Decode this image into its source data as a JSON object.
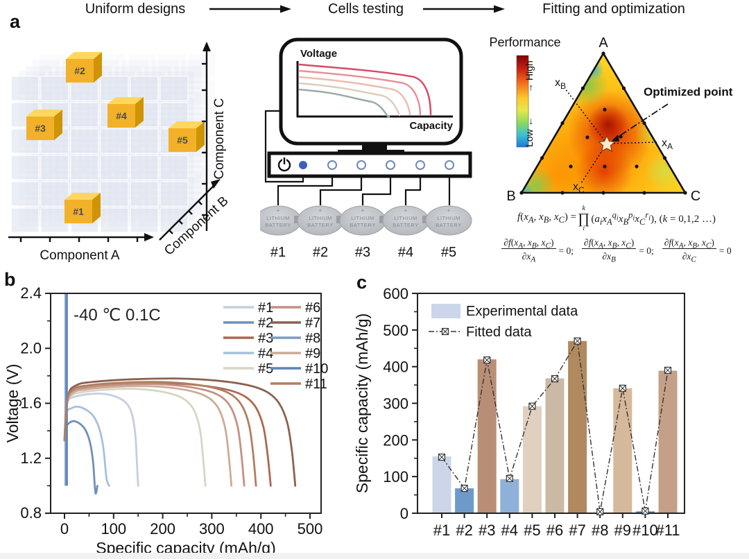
{
  "panel_labels": {
    "a": "a",
    "b": "b",
    "c": "c"
  },
  "header": {
    "step1": "Uniform designs",
    "step2": "Cells testing",
    "step3": "Fitting and optimization"
  },
  "panel_a": {
    "design": {
      "cube_labels": [
        "#1",
        "#2",
        "#3",
        "#4",
        "#5"
      ],
      "axis_a": "Component A",
      "axis_b": "Component B",
      "axis_c": "Component C"
    },
    "testing": {
      "monitor_ylabel": "Voltage",
      "monitor_xlabel": "Capacity",
      "monitor_curve_colors": [
        "#d84a63",
        "#e8909b",
        "#eebbac",
        "#dcccba",
        "#9aaaa4"
      ],
      "battery_plus": "+",
      "battery_line1": "LITHIUM",
      "battery_line2": "BATTERY",
      "cell_labels": [
        "#1",
        "#2",
        "#3",
        "#4",
        "#5"
      ]
    },
    "ternary": {
      "colorbar_title": "Performance",
      "high_label": "→ High",
      "low_label": "Low ←",
      "vertex_a": "A",
      "vertex_b": "B",
      "vertex_c": "C",
      "xa_base": "x",
      "xa_sub": "A",
      "xb_base": "x",
      "xb_sub": "B",
      "xc_base": "x",
      "xc_sub": "C",
      "optimized_label": "Optimized point",
      "colorbar_colors": [
        "#7a0403",
        "#c81d11",
        "#f46d1b",
        "#fdc62c",
        "#e6e84a",
        "#8ad860",
        "#38c1d8",
        "#1f78d1"
      ]
    },
    "equations": {
      "eq1_lhs": "<i>f</i>(<i>x<sub>A</sub></i>, <i>x<sub>B</sub></i>, <i>x<sub>C</sub></i>) =",
      "prod_top": "k",
      "prod_sym": "∏",
      "prod_bot": "i",
      "eq1_rhs": "(<i>a<sub>i</sub></i><i>x<sub>A</sub></i><sup><i>q<sub>i</sub></i></sup><i>x<sub>B</sub></i><sup><i>p<sub>i</sub></i></sup><i>x<sub>C</sub></i><sup><i>r<sub>i</sub></i></sup>), (<i>k</i> = 0,1,2 …)",
      "fractions": [
        {
          "num": "∂<i>f</i>(<i>x<sub>A</sub></i>, <i>x<sub>B</sub></i>, <i>x<sub>C</sub></i>)",
          "den": "∂<i>x<sub>A</sub></i>",
          "rhs": "= 0;"
        },
        {
          "num": "∂<i>f</i>(<i>x<sub>A</sub></i>, <i>x<sub>B</sub></i>, <i>x<sub>C</sub></i>)",
          "den": "∂<i>x<sub>B</sub></i>",
          "rhs": "= 0;"
        },
        {
          "num": "∂<i>f</i>(<i>x<sub>A</sub></i>, <i>x<sub>B</sub></i>, <i>x<sub>C</sub></i>)",
          "den": "∂<i>x<sub>C</sub></i>",
          "rhs": "= 0"
        }
      ]
    }
  },
  "chart_data": [
    {
      "type": "line",
      "panel": "b",
      "annotation": "-40 ℃ 0.1C",
      "xlabel": "Specific capacity (mAh/g)",
      "ylabel": "Voltage (V)",
      "xlim": [
        -28,
        523
      ],
      "ylim": [
        0.8,
        2.4
      ],
      "xticks": [
        "0",
        "100",
        "200",
        "300",
        "400",
        "500"
      ],
      "yticks": [
        "0.8",
        "1.2",
        "1.6",
        "2.0",
        "2.4"
      ],
      "series": [
        {
          "name": "#1",
          "color": "#c7cde1",
          "end_capacity": 150,
          "peak_voltage": 1.67,
          "shape": "discharge"
        },
        {
          "name": "#2",
          "color": "#6e8fba",
          "end_capacity": 67,
          "peak_voltage": 1.47,
          "shape": "dome"
        },
        {
          "name": "#3",
          "color": "#ad6750",
          "end_capacity": 420,
          "peak_voltage": 1.745,
          "shape": "discharge"
        },
        {
          "name": "#4",
          "color": "#a6c0dc",
          "end_capacity": 91,
          "peak_voltage": 1.575,
          "shape": "dome"
        },
        {
          "name": "#5",
          "color": "#d8d5c2",
          "end_capacity": 287,
          "peak_voltage": 1.705,
          "shape": "discharge"
        },
        {
          "name": "#6",
          "color": "#c39181",
          "end_capacity": 366,
          "peak_voltage": 1.74,
          "shape": "discharge"
        },
        {
          "name": "#7",
          "color": "#8a6150",
          "end_capacity": 470,
          "peak_voltage": 1.78,
          "shape": "discharge"
        },
        {
          "name": "#8",
          "color": "#7b9cc8",
          "end_capacity": 2,
          "peak_voltage": 2.4,
          "shape": "vertical"
        },
        {
          "name": "#9",
          "color": "#cdab96",
          "end_capacity": 340,
          "peak_voltage": 1.725,
          "shape": "discharge"
        },
        {
          "name": "#10",
          "color": "#5e84b4",
          "end_capacity": 5,
          "peak_voltage": 2.4,
          "shape": "vertical"
        },
        {
          "name": "#11",
          "color": "#b07e62",
          "end_capacity": 390,
          "peak_voltage": 1.755,
          "shape": "discharge"
        }
      ]
    },
    {
      "type": "bar",
      "panel": "c",
      "ylabel": "Specific capacity (mAh/g)",
      "ylim": [
        0,
        600
      ],
      "yticks": [
        "0",
        "100",
        "200",
        "300",
        "400",
        "500",
        "600"
      ],
      "categories": [
        "#1",
        "#2",
        "#3",
        "#4",
        "#5",
        "#6",
        "#7",
        "#8",
        "#9",
        "#10",
        "#11"
      ],
      "values": [
        155,
        68,
        420,
        93,
        292,
        368,
        470,
        2,
        341,
        5,
        389
      ],
      "fitted": [
        153,
        68,
        418,
        95,
        292,
        367,
        470,
        4,
        341,
        6,
        390
      ],
      "bar_colors": [
        "#ccd6e8",
        "#6d9ac9",
        "#b98e77",
        "#8fb0d8",
        "#e0d0c0",
        "#cbb9a4",
        "#b08a5e",
        "#7b9cc8",
        "#d6b89a",
        "#5e84b4",
        "#c3a087"
      ],
      "legend": [
        {
          "label": "Experimental data",
          "swatch_color": "#ccd6ea"
        },
        {
          "label": "Fitted data",
          "line_color": "#333333"
        }
      ]
    }
  ]
}
